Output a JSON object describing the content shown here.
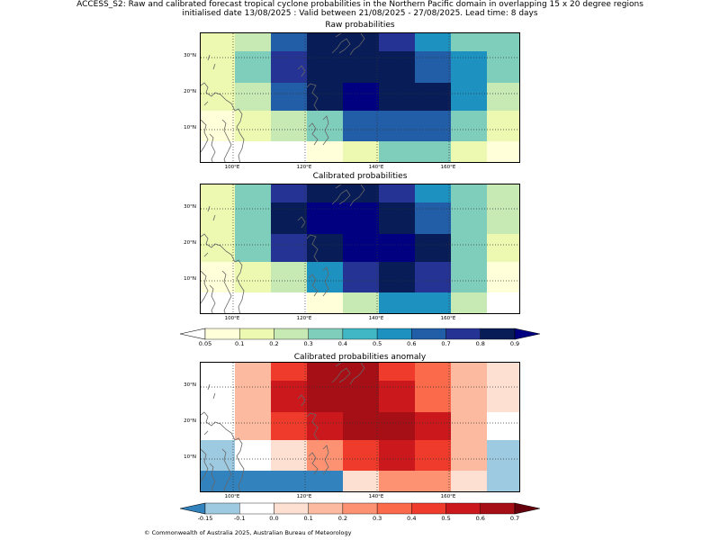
{
  "header": {
    "title_line1": "ACCESS_S2: Raw and calibrated forecast tropical cyclone probabilities in the Northern Pacific domain in overlapping 15 x 20 degree regions",
    "title_line2": "initialised date 13/08/2025 :  Valid between 21/08/2025 - 27/08/2025. Lead time: 8 days"
  },
  "axes": {
    "lat_labels": [
      "30°N",
      "20°N",
      "10°N"
    ],
    "lon_labels": [
      "100°E",
      "120°E",
      "140°E",
      "160°E"
    ]
  },
  "panels": [
    {
      "title": "Raw probabilities",
      "scale": "prob",
      "rows": [
        [
          0.15,
          0.25,
          0.6,
          0.85,
          0.85,
          0.7,
          0.5,
          0.35,
          0.35
        ],
        [
          0.15,
          0.35,
          0.7,
          0.85,
          0.85,
          0.8,
          0.6,
          0.5,
          0.35
        ],
        [
          0.15,
          0.25,
          0.6,
          0.85,
          0.9,
          0.85,
          0.8,
          0.5,
          0.25
        ],
        [
          0.05,
          0.1,
          0.25,
          0.35,
          0.6,
          0.6,
          0.6,
          0.35,
          0.15
        ],
        [
          0.0,
          0.0,
          0.0,
          0.05,
          0.15,
          0.35,
          0.35,
          0.15,
          0.05
        ]
      ]
    },
    {
      "title": "Calibrated probabilities",
      "scale": "prob",
      "rows": [
        [
          0.15,
          0.35,
          0.7,
          0.85,
          0.85,
          0.7,
          0.5,
          0.35,
          0.25
        ],
        [
          0.15,
          0.35,
          0.8,
          0.9,
          0.9,
          0.8,
          0.6,
          0.35,
          0.25
        ],
        [
          0.15,
          0.35,
          0.7,
          0.85,
          0.9,
          0.9,
          0.8,
          0.35,
          0.15
        ],
        [
          0.05,
          0.1,
          0.25,
          0.5,
          0.7,
          0.8,
          0.7,
          0.35,
          0.05
        ],
        [
          0.0,
          0.0,
          0.0,
          0.05,
          0.25,
          0.5,
          0.5,
          0.25,
          0.0
        ]
      ]
    },
    {
      "title": "Calibrated probabilities anomaly",
      "scale": "anom",
      "rows": [
        [
          -0.05,
          0.15,
          0.45,
          0.65,
          0.65,
          0.45,
          0.35,
          0.15,
          0.05
        ],
        [
          -0.05,
          0.15,
          0.55,
          0.65,
          0.65,
          0.55,
          0.35,
          0.15,
          0.05
        ],
        [
          -0.05,
          0.15,
          0.45,
          0.55,
          0.65,
          0.65,
          0.55,
          0.15,
          -0.05
        ],
        [
          -0.15,
          -0.05,
          0.05,
          0.25,
          0.45,
          0.55,
          0.45,
          0.15,
          -0.15
        ],
        [
          -0.2,
          -0.2,
          -0.2,
          -0.2,
          0.05,
          0.25,
          0.25,
          0.05,
          -0.15
        ]
      ]
    }
  ],
  "colorbars": {
    "prob": {
      "ticks": [
        "0.05",
        "0.1",
        "0.2",
        "0.3",
        "0.4",
        "0.5",
        "0.6",
        "0.7",
        "0.8",
        "0.9"
      ],
      "colors": [
        "#ffffd9",
        "#edf8b1",
        "#c7e9b4",
        "#7fcdbb",
        "#41b6c4",
        "#1d91c0",
        "#225ea8",
        "#253494",
        "#081d58"
      ],
      "under": "#ffffff",
      "over": "#000080"
    },
    "anom": {
      "ticks": [
        "-0.15",
        "-0.1",
        "0.0",
        "0.1",
        "0.2",
        "0.3",
        "0.4",
        "0.5",
        "0.6",
        "0.7"
      ],
      "colors": [
        "#9ecae1",
        "#ffffff",
        "#fee0d2",
        "#fcbba1",
        "#fc9272",
        "#fb6a4a",
        "#ef3b2c",
        "#cb181d",
        "#a50f15"
      ],
      "under": "#3182bd",
      "over": "#67000d"
    }
  },
  "footer": "© Commonwealth of Australia 2025, Australian Bureau of Meteorology"
}
